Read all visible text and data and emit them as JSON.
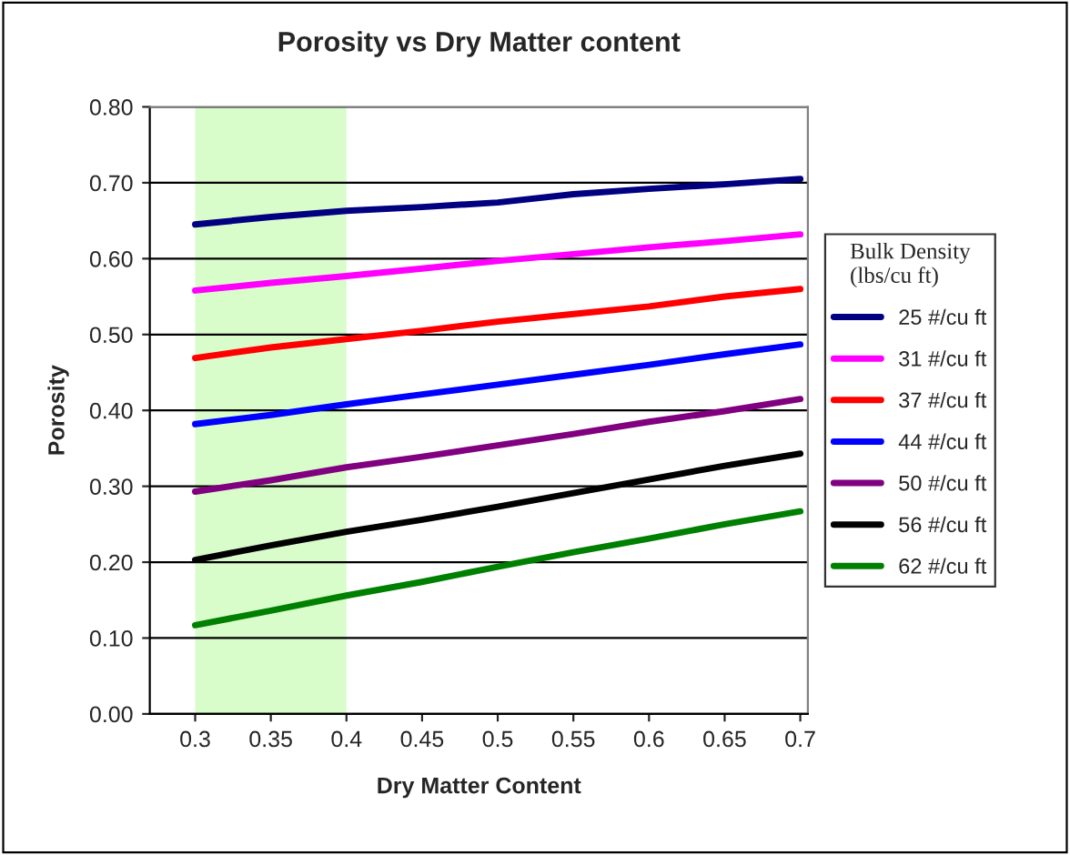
{
  "chart_data": {
    "type": "line",
    "title": "Porosity vs Dry Matter content",
    "xlabel": "Dry Matter Content",
    "ylabel": "Porosity",
    "legend_title": "Bulk Density\n(lbs/cu ft)",
    "x": [
      0.3,
      0.35,
      0.4,
      0.45,
      0.5,
      0.55,
      0.6,
      0.65,
      0.7
    ],
    "xlim": [
      0.27,
      0.705
    ],
    "xticks": [
      0.3,
      0.35,
      0.4,
      0.45,
      0.5,
      0.55,
      0.6,
      0.65,
      0.7
    ],
    "ylim": [
      0,
      0.8
    ],
    "yticks": [
      {
        "value": 0,
        "label": "0.00"
      },
      {
        "value": 0.1,
        "label": "0.10"
      },
      {
        "value": 0.2,
        "label": "0.20"
      },
      {
        "value": 0.3,
        "label": "0.30"
      },
      {
        "value": 0.4,
        "label": "0.40"
      },
      {
        "value": 0.5,
        "label": "0.50"
      },
      {
        "value": 0.6,
        "label": "0.60"
      },
      {
        "value": 0.7,
        "label": "0.70"
      },
      {
        "value": 0.8,
        "label": "0.80"
      }
    ],
    "grid": "y",
    "legend": "right",
    "marker": "none",
    "line_style": "solid",
    "bands": [
      {
        "axis": "x",
        "from": 0.3,
        "to": 0.4,
        "color": "#d9fccb"
      }
    ],
    "series": [
      {
        "name": "25 #/cu ft",
        "color": "#000080",
        "values": [
          0.645,
          0.655,
          0.663,
          0.668,
          0.674,
          0.685,
          0.692,
          0.698,
          0.705
        ]
      },
      {
        "name": "31 #/cu ft",
        "color": "#ff00ff",
        "values": [
          0.558,
          0.568,
          0.577,
          0.587,
          0.597,
          0.606,
          0.615,
          0.623,
          0.632
        ]
      },
      {
        "name": "37 #/cu ft",
        "color": "#ff0000",
        "values": [
          0.469,
          0.483,
          0.494,
          0.505,
          0.517,
          0.527,
          0.537,
          0.55,
          0.56
        ]
      },
      {
        "name": "44 #/cu ft",
        "color": "#0000ff",
        "values": [
          0.382,
          0.394,
          0.408,
          0.421,
          0.434,
          0.447,
          0.46,
          0.474,
          0.487
        ]
      },
      {
        "name": "50 #/cu ft",
        "color": "#800080",
        "values": [
          0.293,
          0.308,
          0.325,
          0.339,
          0.354,
          0.369,
          0.385,
          0.399,
          0.415
        ]
      },
      {
        "name": "56 #/cu ft",
        "color": "#000000",
        "values": [
          0.203,
          0.222,
          0.24,
          0.256,
          0.273,
          0.291,
          0.309,
          0.327,
          0.343
        ]
      },
      {
        "name": "62 #/cu ft",
        "color": "#008000",
        "values": [
          0.117,
          0.136,
          0.156,
          0.174,
          0.194,
          0.213,
          0.231,
          0.25,
          0.267
        ]
      }
    ]
  }
}
